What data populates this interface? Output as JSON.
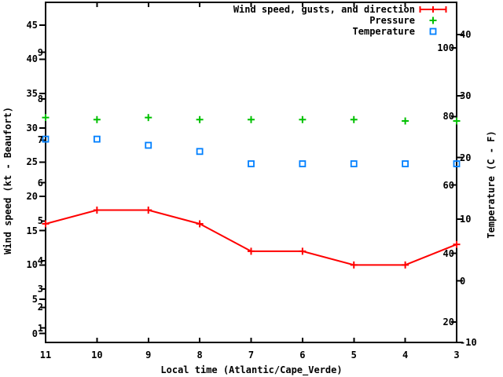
{
  "figure": {
    "background_color": "#ffffff",
    "text_color": "#000000",
    "border_color": "#000000"
  },
  "chart_data": {
    "type": "line",
    "title": "",
    "grid": false,
    "legend_position": "top-right-inside",
    "x_categories": [
      "11",
      "10",
      "9",
      "8",
      "7",
      "6",
      "5",
      "4",
      "3"
    ],
    "series": [
      {
        "name": "Wind speed, gusts, and direction",
        "color": "#ff0000",
        "style": "linespoints",
        "marker": "plus",
        "legend_sample": "errorbar",
        "axis": "left",
        "unit": "kt",
        "values": [
          16,
          18,
          18,
          16,
          12,
          12,
          10,
          10,
          13
        ]
      },
      {
        "name": "Pressure",
        "color": "#00c000",
        "style": "points",
        "marker": "plus",
        "legend_sample": "plus",
        "axis": "left-equivalent (pressure axis not labeled)",
        "unit": "left-axis kt-equivalent reading",
        "values": [
          31.5,
          31.2,
          31.5,
          31.2,
          31.2,
          31.2,
          31.2,
          31.0,
          31.0
        ]
      },
      {
        "name": "Temperature",
        "color": "#0080ff",
        "style": "points",
        "marker": "open-square",
        "legend_sample": "square",
        "axis": "right",
        "unit": "C",
        "values": [
          23,
          23,
          22,
          21,
          19,
          19,
          19,
          19,
          19
        ]
      }
    ],
    "axes": {
      "x": {
        "label": "Local time (Atlantic/Cape_Verde)",
        "ticks": [
          "11",
          "10",
          "9",
          "8",
          "7",
          "6",
          "5",
          "4",
          "3"
        ],
        "direction": "descending"
      },
      "left": {
        "label": "Wind speed (kt - Beaufort)",
        "kt_ticks": [
          0,
          5,
          10,
          15,
          20,
          25,
          30,
          35,
          40,
          45
        ],
        "beaufort_ticks": [
          {
            "label": "1",
            "kt": 0.8
          },
          {
            "label": "2",
            "kt": 3.8
          },
          {
            "label": "3",
            "kt": 6.5
          },
          {
            "label": "4",
            "kt": 10.6
          },
          {
            "label": "5",
            "kt": 16.4
          },
          {
            "label": "6",
            "kt": 22
          },
          {
            "label": "7",
            "kt": 28.2
          },
          {
            "label": "8",
            "kt": 34.2
          },
          {
            "label": "9",
            "kt": 41
          }
        ],
        "range": [
          -1.3,
          48.3
        ]
      },
      "right": {
        "label": "Temperature (C - F)",
        "c_ticks": [
          -10,
          0,
          10,
          20,
          30,
          40
        ],
        "f_ticks": [
          20,
          40,
          60,
          80,
          100
        ],
        "range": [
          -10,
          45.2
        ]
      }
    }
  }
}
